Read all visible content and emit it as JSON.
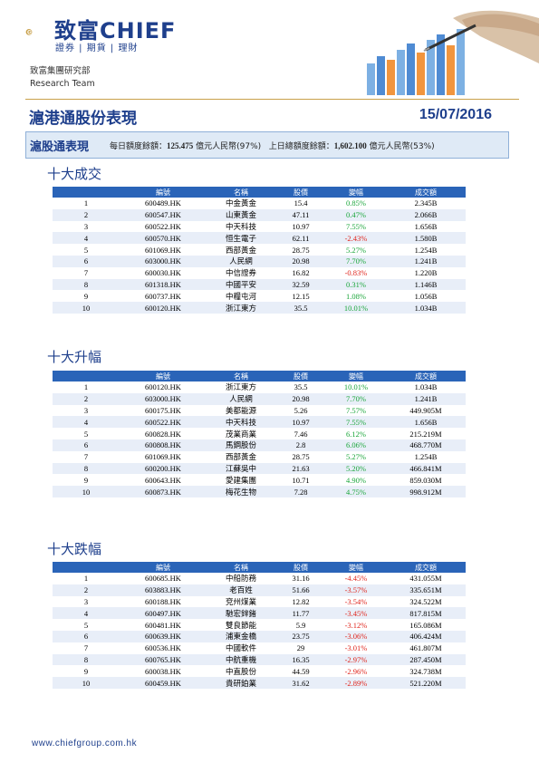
{
  "brand": {
    "name": "致富CHIEF",
    "tagline": "證券 | 期貨 | 理財",
    "department": "致富集團研究部",
    "team": "Research Team"
  },
  "report": {
    "title": "滬港通股份表現",
    "date": "15/07/2016"
  },
  "summary": {
    "label": "滬股通表現",
    "daily_prefix": "每日額度餘額：",
    "daily_value": "125.475",
    "daily_suffix": " 億元人民幣(97%)",
    "prev_prefix": "上日總額度餘額：",
    "prev_value": "1,602.100",
    "prev_suffix": " 億元人民幣(53%)"
  },
  "columns": [
    "編號",
    "名稱",
    "股價",
    "變幅",
    "成交額"
  ],
  "sections": [
    {
      "title": "十大成交",
      "rows": [
        {
          "rank": "1",
          "code": "600489.HK",
          "name": "中金黃金",
          "price": "15.4",
          "change": "0.85%",
          "dir": "up",
          "turnover": "2.345B"
        },
        {
          "rank": "2",
          "code": "600547.HK",
          "name": "山東黃金",
          "price": "47.11",
          "change": "0.47%",
          "dir": "up",
          "turnover": "2.066B"
        },
        {
          "rank": "3",
          "code": "600522.HK",
          "name": "中天科技",
          "price": "10.97",
          "change": "7.55%",
          "dir": "up",
          "turnover": "1.656B"
        },
        {
          "rank": "4",
          "code": "600570.HK",
          "name": "恒生電子",
          "price": "62.11",
          "change": "-2.43%",
          "dir": "down",
          "turnover": "1.580B"
        },
        {
          "rank": "5",
          "code": "601069.HK",
          "name": "西部黃金",
          "price": "28.75",
          "change": "5.27%",
          "dir": "up",
          "turnover": "1.254B"
        },
        {
          "rank": "6",
          "code": "603000.HK",
          "name": "人民網",
          "price": "20.98",
          "change": "7.70%",
          "dir": "up",
          "turnover": "1.241B"
        },
        {
          "rank": "7",
          "code": "600030.HK",
          "name": "中信證券",
          "price": "16.82",
          "change": "-0.83%",
          "dir": "down",
          "turnover": "1.220B"
        },
        {
          "rank": "8",
          "code": "601318.HK",
          "name": "中國平安",
          "price": "32.59",
          "change": "0.31%",
          "dir": "up",
          "turnover": "1.146B"
        },
        {
          "rank": "9",
          "code": "600737.HK",
          "name": "中糧屯河",
          "price": "12.15",
          "change": "1.08%",
          "dir": "up",
          "turnover": "1.056B"
        },
        {
          "rank": "10",
          "code": "600120.HK",
          "name": "浙江東方",
          "price": "35.5",
          "change": "10.01%",
          "dir": "up",
          "turnover": "1.034B"
        }
      ]
    },
    {
      "title": "十大升幅",
      "rows": [
        {
          "rank": "1",
          "code": "600120.HK",
          "name": "浙江東方",
          "price": "35.5",
          "change": "10.01%",
          "dir": "up",
          "turnover": "1.034B"
        },
        {
          "rank": "2",
          "code": "603000.HK",
          "name": "人民網",
          "price": "20.98",
          "change": "7.70%",
          "dir": "up",
          "turnover": "1.241B"
        },
        {
          "rank": "3",
          "code": "600175.HK",
          "name": "美都能源",
          "price": "5.26",
          "change": "7.57%",
          "dir": "up",
          "turnover": "449.905M"
        },
        {
          "rank": "4",
          "code": "600522.HK",
          "name": "中天科技",
          "price": "10.97",
          "change": "7.55%",
          "dir": "up",
          "turnover": "1.656B"
        },
        {
          "rank": "5",
          "code": "600828.HK",
          "name": "茂業商業",
          "price": "7.46",
          "change": "6.12%",
          "dir": "up",
          "turnover": "215.219M"
        },
        {
          "rank": "6",
          "code": "600808.HK",
          "name": "馬鋼股份",
          "price": "2.8",
          "change": "6.06%",
          "dir": "up",
          "turnover": "468.770M"
        },
        {
          "rank": "7",
          "code": "601069.HK",
          "name": "西部黃金",
          "price": "28.75",
          "change": "5.27%",
          "dir": "up",
          "turnover": "1.254B"
        },
        {
          "rank": "8",
          "code": "600200.HK",
          "name": "江蘇吳中",
          "price": "21.63",
          "change": "5.20%",
          "dir": "up",
          "turnover": "466.841M"
        },
        {
          "rank": "9",
          "code": "600643.HK",
          "name": "愛建集團",
          "price": "10.71",
          "change": "4.90%",
          "dir": "up",
          "turnover": "859.030M"
        },
        {
          "rank": "10",
          "code": "600873.HK",
          "name": "梅花生物",
          "price": "7.28",
          "change": "4.75%",
          "dir": "up",
          "turnover": "998.912M"
        }
      ]
    },
    {
      "title": "十大跌幅",
      "rows": [
        {
          "rank": "1",
          "code": "600685.HK",
          "name": "中船防務",
          "price": "31.16",
          "change": "-4.45%",
          "dir": "down",
          "turnover": "431.055M"
        },
        {
          "rank": "2",
          "code": "603883.HK",
          "name": "老百姓",
          "price": "51.66",
          "change": "-3.57%",
          "dir": "down",
          "turnover": "335.651M"
        },
        {
          "rank": "3",
          "code": "600188.HK",
          "name": "兗州煤業",
          "price": "12.82",
          "change": "-3.54%",
          "dir": "down",
          "turnover": "324.522M"
        },
        {
          "rank": "4",
          "code": "600497.HK",
          "name": "馳宏鋅鍺",
          "price": "11.77",
          "change": "-3.45%",
          "dir": "down",
          "turnover": "817.815M"
        },
        {
          "rank": "5",
          "code": "600481.HK",
          "name": "雙良節能",
          "price": "5.9",
          "change": "-3.12%",
          "dir": "down",
          "turnover": "165.086M"
        },
        {
          "rank": "6",
          "code": "600639.HK",
          "name": "浦東金橋",
          "price": "23.75",
          "change": "-3.06%",
          "dir": "down",
          "turnover": "406.424M"
        },
        {
          "rank": "7",
          "code": "600536.HK",
          "name": "中國軟件",
          "price": "29",
          "change": "-3.01%",
          "dir": "down",
          "turnover": "461.807M"
        },
        {
          "rank": "8",
          "code": "600765.HK",
          "name": "中航重機",
          "price": "16.35",
          "change": "-2.97%",
          "dir": "down",
          "turnover": "287.450M"
        },
        {
          "rank": "9",
          "code": "600038.HK",
          "name": "中直股份",
          "price": "44.59",
          "change": "-2.96%",
          "dir": "down",
          "turnover": "324.738M"
        },
        {
          "rank": "10",
          "code": "600459.HK",
          "name": "貴研鉑業",
          "price": "31.62",
          "change": "-2.89%",
          "dir": "down",
          "turnover": "521.220M"
        }
      ]
    }
  ],
  "footer": {
    "url": "www.chiefgroup.com.hk"
  },
  "colors": {
    "brand_blue": "#1e3f8c",
    "header_blue": "#2a64b8",
    "up": "#1aa63a",
    "down": "#e0251c"
  }
}
